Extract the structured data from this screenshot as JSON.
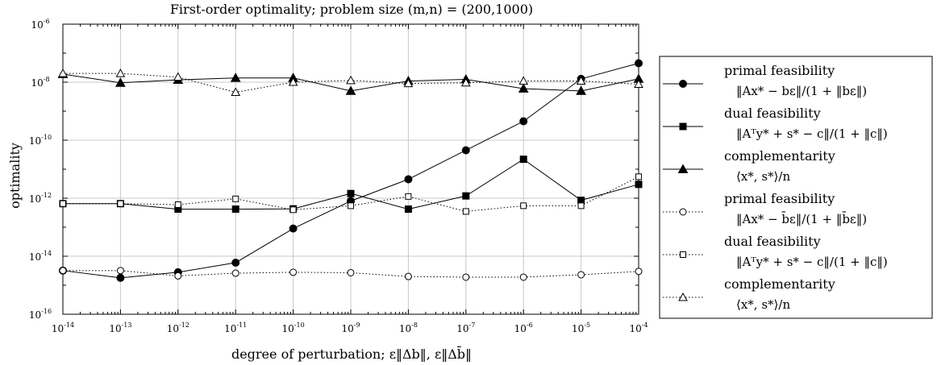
{
  "chart_data": {
    "type": "line",
    "title": "First-order optimality; problem size (m,n) = (200,1000)",
    "xlabel": "degree of perturbation; ε‖Δb‖, ε‖Δb̄‖",
    "ylabel": "optimality",
    "x_scale": "log",
    "y_scale": "log",
    "xlim": [
      1e-14,
      0.0001
    ],
    "ylim": [
      1e-16,
      1e-06
    ],
    "x_ticks": [
      {
        "base": "10",
        "exp": "-14"
      },
      {
        "base": "10",
        "exp": "-13"
      },
      {
        "base": "10",
        "exp": "-12"
      },
      {
        "base": "10",
        "exp": "-11"
      },
      {
        "base": "10",
        "exp": "-10"
      },
      {
        "base": "10",
        "exp": "-9"
      },
      {
        "base": "10",
        "exp": "-8"
      },
      {
        "base": "10",
        "exp": "-7"
      },
      {
        "base": "10",
        "exp": "-6"
      },
      {
        "base": "10",
        "exp": "-5"
      },
      {
        "base": "10",
        "exp": "-4"
      }
    ],
    "y_ticks": [
      {
        "base": "10",
        "exp": "-16"
      },
      {
        "base": "10",
        "exp": "-14"
      },
      {
        "base": "10",
        "exp": "-12"
      },
      {
        "base": "10",
        "exp": "-10"
      },
      {
        "base": "10",
        "exp": "-8"
      },
      {
        "base": "10",
        "exp": "-6"
      }
    ],
    "grid": true,
    "legend_position": "right",
    "x": [
      1e-14,
      1e-13,
      1e-12,
      1e-11,
      1e-10,
      1e-09,
      1e-08,
      1e-07,
      1e-06,
      1e-05,
      0.0001
    ],
    "series": [
      {
        "name": "primal feasibility",
        "subtitle": "‖Ax* − bε‖/(1 + ‖bε‖)",
        "line": "solid",
        "marker": "circle",
        "filled": true,
        "values": [
          3.2e-15,
          1.8e-15,
          2.8e-15,
          6e-15,
          9e-14,
          8e-13,
          4.5e-12,
          4.5e-11,
          4.5e-10,
          1.3e-08,
          4.5e-08
        ]
      },
      {
        "name": "dual feasibility",
        "subtitle": "‖Aᵀy* + s* − c‖/(1 + ‖c‖)",
        "line": "solid",
        "marker": "square",
        "filled": true,
        "values": [
          6.5e-13,
          6.5e-13,
          4.2e-13,
          4.2e-13,
          4.3e-13,
          1.45e-12,
          4.2e-13,
          1.2e-12,
          2.2e-11,
          8.5e-13,
          3e-12
        ]
      },
      {
        "name": "complementarity",
        "subtitle": "⟨x*, s*⟩/n",
        "line": "solid",
        "marker": "triangle",
        "filled": true,
        "values": [
          1.9e-08,
          9.5e-09,
          1.2e-08,
          1.4e-08,
          1.4e-08,
          5e-09,
          1.1e-08,
          1.25e-08,
          6e-09,
          5e-09,
          1.3e-08
        ]
      },
      {
        "name": "primal feasibility",
        "subtitle": "‖Ax* − b̄ε‖/(1 + ‖b̄ε‖)",
        "line": "dotted",
        "marker": "circle",
        "filled": false,
        "values": [
          3.2e-15,
          3.2e-15,
          2.1e-15,
          2.6e-15,
          2.8e-15,
          2.7e-15,
          2e-15,
          1.9e-15,
          1.9e-15,
          2.3e-15,
          3e-15
        ]
      },
      {
        "name": "dual feasibility",
        "subtitle": "‖Aᵀy* + s* − c‖/(1 + ‖c‖)",
        "line": "dotted",
        "marker": "square",
        "filled": false,
        "values": [
          6.5e-13,
          6.5e-13,
          6e-13,
          9.5e-13,
          4e-13,
          5.5e-13,
          1.15e-12,
          3.5e-13,
          5.5e-13,
          5.5e-13,
          5.5e-12
        ]
      },
      {
        "name": "complementarity",
        "subtitle": "⟨x*, s*⟩/n",
        "line": "dotted",
        "marker": "triangle",
        "filled": false,
        "values": [
          2e-08,
          2e-08,
          1.5e-08,
          4.5e-09,
          1e-08,
          1.15e-08,
          9e-09,
          9.5e-09,
          1.1e-08,
          1.1e-08,
          8.5e-09
        ]
      }
    ]
  }
}
